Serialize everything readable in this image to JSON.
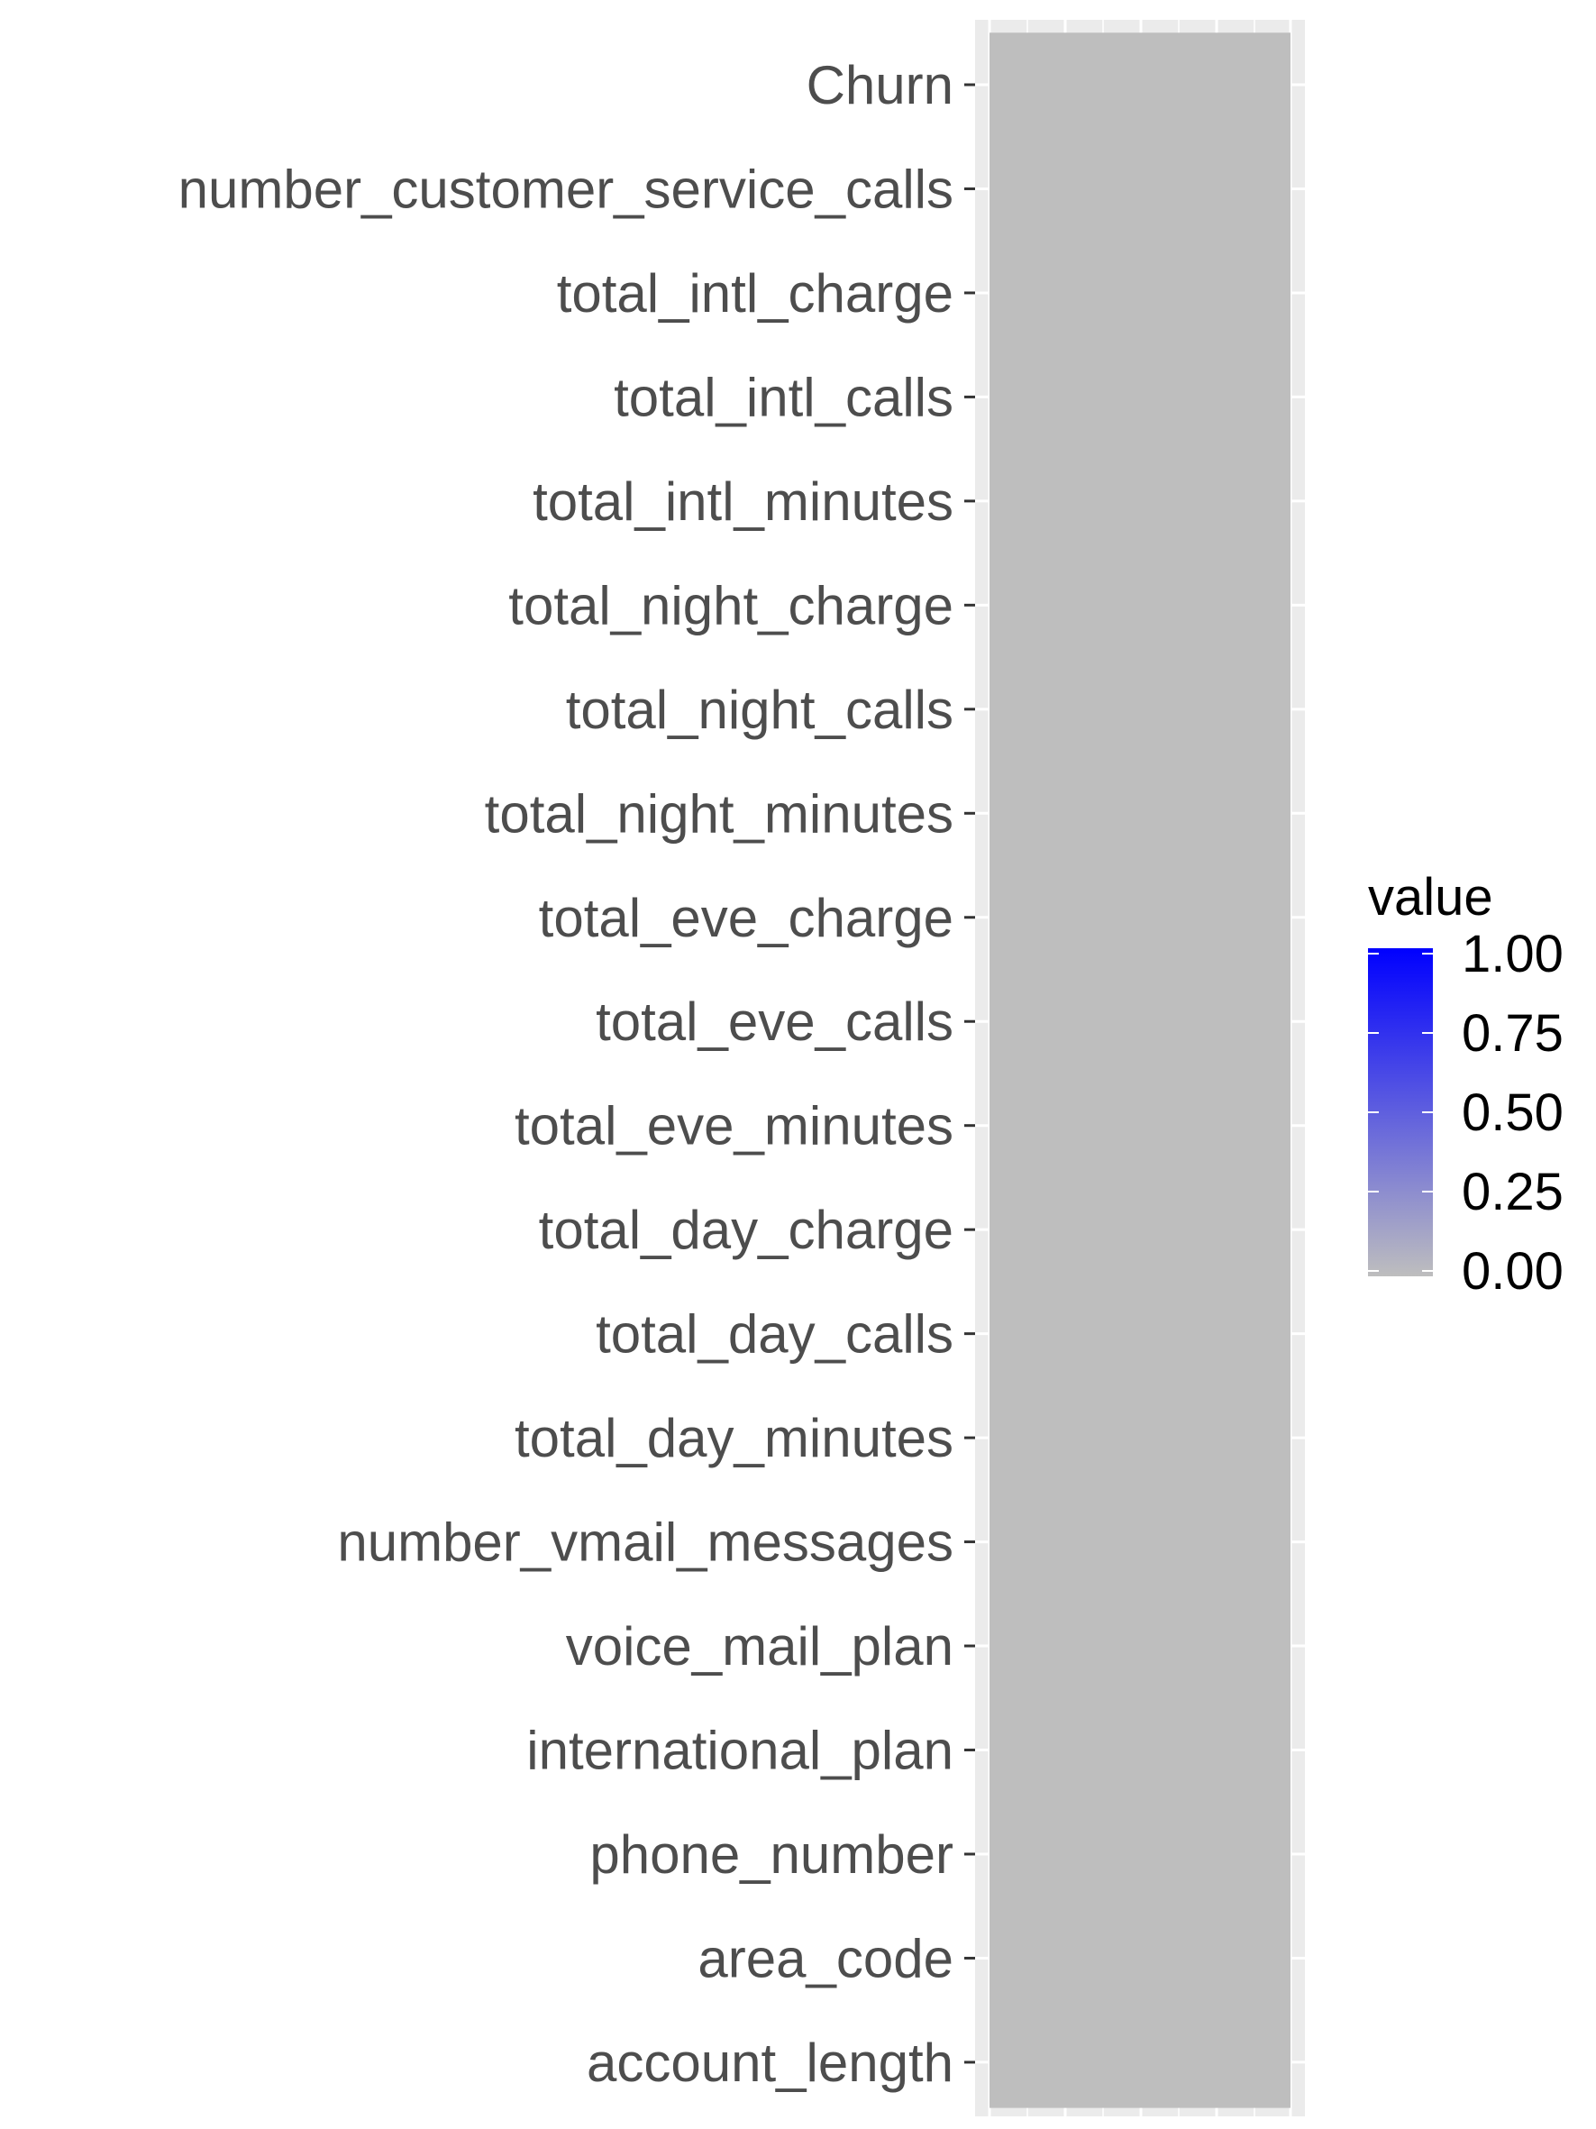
{
  "chart_data": {
    "type": "heatmap",
    "title": "",
    "xlabel": "",
    "ylabel": "",
    "y_categories": [
      "Churn",
      "number_customer_service_calls",
      "total_intl_charge",
      "total_intl_calls",
      "total_intl_minutes",
      "total_night_charge",
      "total_night_calls",
      "total_night_minutes",
      "total_eve_charge",
      "total_eve_calls",
      "total_eve_minutes",
      "total_day_charge",
      "total_day_calls",
      "total_day_minutes",
      "number_vmail_messages",
      "voice_mail_plan",
      "international_plan",
      "phone_number",
      "area_code",
      "account_length"
    ],
    "values": [
      0,
      0,
      0,
      0,
      0,
      0,
      0,
      0,
      0,
      0,
      0,
      0,
      0,
      0,
      0,
      0,
      0,
      0,
      0,
      0
    ],
    "grid": true,
    "legend": {
      "title": "value",
      "position": "right",
      "ticks": [
        "1.00",
        "0.75",
        "0.50",
        "0.25",
        "0.00"
      ],
      "range": [
        0,
        1
      ],
      "low_color": "#bebebe",
      "high_color": "#0000ff"
    },
    "panel_background": "#ebebeb",
    "gridline_color": "#ffffff"
  }
}
